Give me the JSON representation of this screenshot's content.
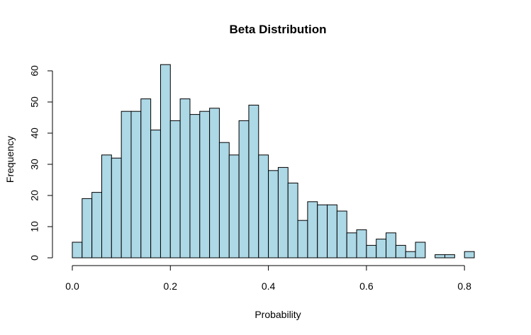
{
  "chart_data": {
    "type": "bar",
    "title": "Beta Distribution",
    "xlabel": "Probability",
    "ylabel": "Frequency",
    "bar_color": "#add8e6",
    "bin_start": 0.0,
    "bin_width": 0.02,
    "values": [
      5,
      19,
      21,
      33,
      32,
      47,
      47,
      51,
      41,
      62,
      44,
      51,
      46,
      47,
      48,
      37,
      33,
      44,
      49,
      33,
      28,
      29,
      24,
      12,
      18,
      17,
      17,
      15,
      8,
      9,
      4,
      6,
      8,
      4,
      2,
      5,
      0,
      1,
      1,
      0,
      2
    ],
    "xlim": [
      0.0,
      0.82
    ],
    "ylim": [
      0,
      62
    ],
    "x_ticks": [
      "0.0",
      "0.2",
      "0.4",
      "0.6",
      "0.8"
    ],
    "y_ticks": [
      "0",
      "10",
      "20",
      "30",
      "40",
      "50",
      "60"
    ],
    "grid": false,
    "legend": "none"
  }
}
